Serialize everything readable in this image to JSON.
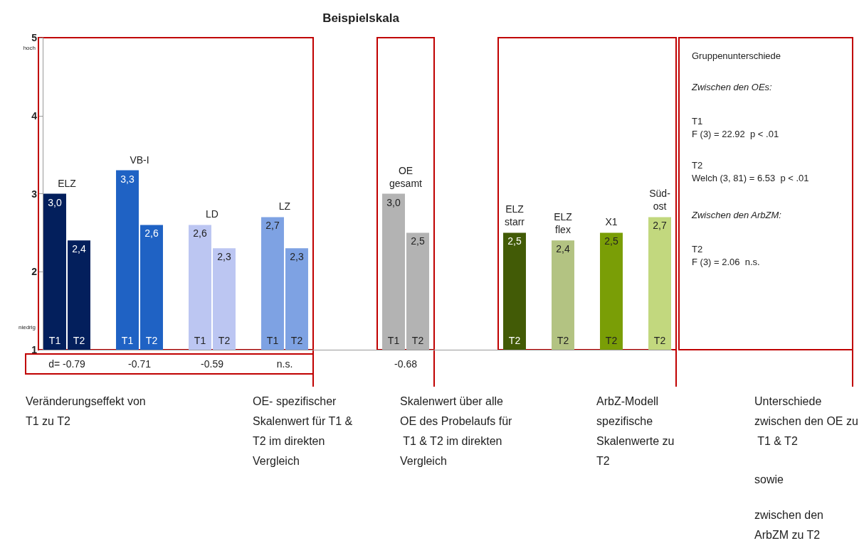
{
  "chart_data": {
    "type": "bar",
    "title": "Beispielskala",
    "categories": [
      "T1",
      "T2",
      null,
      "T1",
      "T2",
      null,
      "T1",
      "T2",
      null,
      "T1",
      "T2",
      null,
      null,
      null,
      "T1",
      "T2",
      null,
      null,
      null,
      "T2",
      null,
      "T2",
      null,
      "T2",
      null,
      "T2"
    ],
    "series": [
      {
        "name": "ELZ",
        "color": "#031f5c",
        "values": [
          3.0,
          2.4,
          null,
          null,
          null,
          null,
          null,
          null,
          null,
          null,
          null,
          null,
          null,
          null,
          null,
          null,
          null,
          null,
          null,
          null,
          null,
          null,
          null,
          null,
          null,
          null
        ],
        "value_labels": [
          "3,0",
          "2,4",
          null,
          null,
          null,
          null,
          null,
          null,
          null,
          null,
          null,
          null,
          null,
          null,
          null,
          null,
          null,
          null,
          null,
          null,
          null,
          null,
          null,
          null,
          null,
          null
        ]
      },
      {
        "name": "VB-I",
        "color": "#1f62c4",
        "values": [
          null,
          null,
          null,
          3.3,
          2.6,
          null,
          null,
          null,
          null,
          null,
          null,
          null,
          null,
          null,
          null,
          null,
          null,
          null,
          null,
          null,
          null,
          null,
          null,
          null,
          null,
          null
        ],
        "value_labels": [
          null,
          null,
          null,
          "3,3",
          "2,6",
          null,
          null,
          null,
          null,
          null,
          null,
          null,
          null,
          null,
          null,
          null,
          null,
          null,
          null,
          null,
          null,
          null,
          null,
          null,
          null,
          null
        ]
      },
      {
        "name": "LD",
        "color": "#bcc6f2",
        "values": [
          null,
          null,
          null,
          null,
          null,
          null,
          2.6,
          2.3,
          null,
          null,
          null,
          null,
          null,
          null,
          null,
          null,
          null,
          null,
          null,
          null,
          null,
          null,
          null,
          null,
          null,
          null
        ],
        "value_labels": [
          null,
          null,
          null,
          null,
          null,
          null,
          "2,6",
          "2,3",
          null,
          null,
          null,
          null,
          null,
          null,
          null,
          null,
          null,
          null,
          null,
          null,
          null,
          null,
          null,
          null,
          null,
          null
        ]
      },
      {
        "name": "LZ",
        "color": "#7ea2e3",
        "values": [
          null,
          null,
          null,
          null,
          null,
          null,
          null,
          null,
          null,
          2.7,
          2.3,
          null,
          null,
          null,
          null,
          null,
          null,
          null,
          null,
          null,
          null,
          null,
          null,
          null,
          null,
          null
        ],
        "value_labels": [
          null,
          null,
          null,
          null,
          null,
          null,
          null,
          null,
          null,
          "2,7",
          "2,3",
          null,
          null,
          null,
          null,
          null,
          null,
          null,
          null,
          null,
          null,
          null,
          null,
          null,
          null,
          null
        ]
      },
      {
        "name": "OE\ngesamt",
        "color": "#b3b3b3",
        "values": [
          null,
          null,
          null,
          null,
          null,
          null,
          null,
          null,
          null,
          null,
          null,
          null,
          null,
          null,
          3.0,
          2.5,
          null,
          null,
          null,
          null,
          null,
          null,
          null,
          null,
          null,
          null
        ],
        "value_labels": [
          null,
          null,
          null,
          null,
          null,
          null,
          null,
          null,
          null,
          null,
          null,
          null,
          null,
          null,
          "3,0",
          "2,5",
          null,
          null,
          null,
          null,
          null,
          null,
          null,
          null,
          null,
          null
        ]
      },
      {
        "name": "ELZ\nstarr",
        "color": "#425b06",
        "values": [
          null,
          null,
          null,
          null,
          null,
          null,
          null,
          null,
          null,
          null,
          null,
          null,
          null,
          null,
          null,
          null,
          null,
          null,
          null,
          2.5,
          null,
          null,
          null,
          null,
          null,
          null
        ],
        "value_labels": [
          null,
          null,
          null,
          null,
          null,
          null,
          null,
          null,
          null,
          null,
          null,
          null,
          null,
          null,
          null,
          null,
          null,
          null,
          null,
          "2,5",
          null,
          null,
          null,
          null,
          null,
          null
        ]
      },
      {
        "name": "ELZ\nflex",
        "color": "#b3c382",
        "values": [
          null,
          null,
          null,
          null,
          null,
          null,
          null,
          null,
          null,
          null,
          null,
          null,
          null,
          null,
          null,
          null,
          null,
          null,
          null,
          null,
          null,
          2.4,
          null,
          null,
          null,
          null
        ],
        "value_labels": [
          null,
          null,
          null,
          null,
          null,
          null,
          null,
          null,
          null,
          null,
          null,
          null,
          null,
          null,
          null,
          null,
          null,
          null,
          null,
          null,
          null,
          "2,4",
          null,
          null,
          null,
          null
        ]
      },
      {
        "name": "X1",
        "color": "#7a9e06",
        "values": [
          null,
          null,
          null,
          null,
          null,
          null,
          null,
          null,
          null,
          null,
          null,
          null,
          null,
          null,
          null,
          null,
          null,
          null,
          null,
          null,
          null,
          null,
          null,
          2.5,
          null,
          null
        ],
        "value_labels": [
          null,
          null,
          null,
          null,
          null,
          null,
          null,
          null,
          null,
          null,
          null,
          null,
          null,
          null,
          null,
          null,
          null,
          null,
          null,
          null,
          null,
          null,
          null,
          "2,5",
          null,
          null
        ]
      },
      {
        "name": "Süd-\nost",
        "color": "#c2d87e",
        "values": [
          null,
          null,
          null,
          null,
          null,
          null,
          null,
          null,
          null,
          null,
          null,
          null,
          null,
          null,
          null,
          null,
          null,
          null,
          null,
          null,
          null,
          null,
          null,
          null,
          null,
          2.7
        ],
        "value_labels": [
          null,
          null,
          null,
          null,
          null,
          null,
          null,
          null,
          null,
          null,
          null,
          null,
          null,
          null,
          null,
          null,
          null,
          null,
          null,
          null,
          null,
          null,
          null,
          null,
          null,
          "2,7"
        ]
      }
    ],
    "ylim": [
      1,
      5
    ],
    "yticks": [
      1,
      2,
      3,
      4,
      5
    ],
    "grid": false,
    "annotations": [
      "d= -0.79",
      "-0.71",
      "-0.59",
      "n.s.",
      "-0.68",
      "hoch",
      "niedrig",
      "Gruppenunterschiede",
      "Zwischen den OEs:",
      "T1\nF (3) = 22.92  p < .01",
      "T2\nWelch (3, 81) = 6.53  p < .01",
      "Zwischen den ArbZM:",
      "T2\nF (3) = 2.06  n.s.",
      "Veränderungseffekt von T1 zu T2",
      "OE- spezifischer Skalenwert für T1 & T2 im direkten Vergleich",
      "Skalenwert über alle OE des Probelaufs für T1 & T2 im direkten Vergleich",
      "ArbZ-Modell spezifische Skalenwerte zu T2",
      "Unterschiede zwischen den OE zu T1 & T2",
      "sowie",
      "zwischen den ArbZM zu T2"
    ]
  }
}
